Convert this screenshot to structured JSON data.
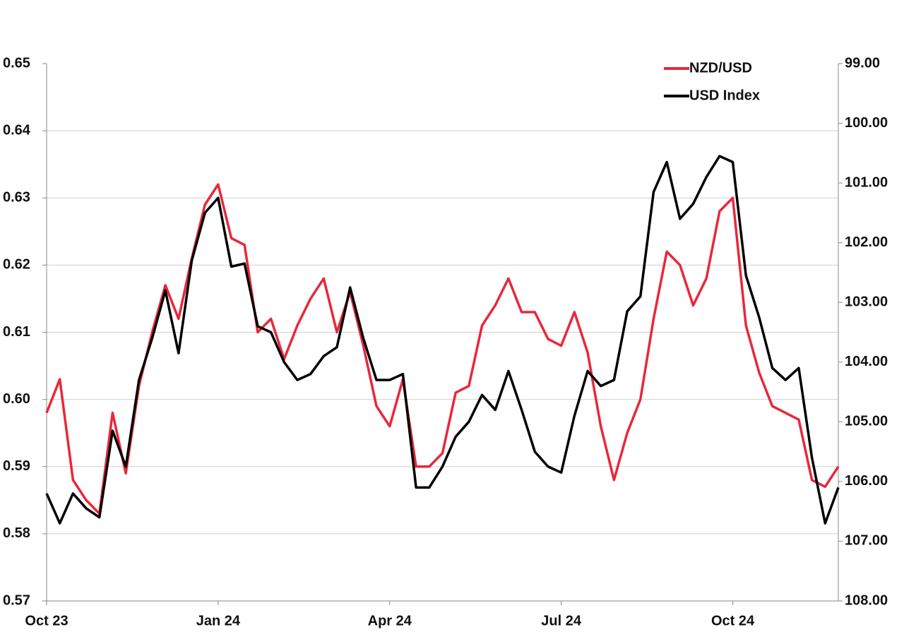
{
  "chart_data": {
    "type": "line",
    "categories": [
      "Oct 23",
      null,
      null,
      null,
      null,
      null,
      null,
      null,
      null,
      null,
      null,
      null,
      null,
      "Jan 24",
      null,
      null,
      null,
      null,
      null,
      null,
      null,
      null,
      null,
      null,
      null,
      null,
      "Apr 24",
      null,
      null,
      null,
      null,
      null,
      null,
      null,
      null,
      null,
      null,
      null,
      null,
      "Jul 24",
      null,
      null,
      null,
      null,
      null,
      null,
      null,
      null,
      null,
      null,
      null,
      null,
      "Oct 24",
      null,
      null,
      null,
      null,
      null,
      null,
      null,
      null
    ],
    "series": [
      {
        "name": "NZD/USD",
        "color": "#e8283a",
        "axis": "y",
        "values": [
          0.598,
          0.603,
          0.588,
          0.585,
          0.583,
          0.598,
          0.589,
          0.602,
          0.61,
          0.617,
          0.612,
          0.621,
          0.629,
          0.632,
          0.624,
          0.623,
          0.61,
          0.612,
          0.606,
          0.611,
          0.615,
          0.618,
          0.61,
          0.616,
          0.608,
          0.599,
          0.596,
          0.603,
          0.59,
          0.59,
          0.592,
          0.601,
          0.602,
          0.611,
          0.614,
          0.618,
          0.613,
          0.613,
          0.609,
          0.608,
          0.613,
          0.607,
          0.596,
          0.588,
          0.595,
          0.6,
          0.612,
          0.622,
          0.62,
          0.614,
          0.618,
          0.628,
          0.63,
          0.611,
          0.604,
          0.599,
          0.598,
          0.597,
          0.588,
          0.587,
          0.59
        ]
      },
      {
        "name": "USD Index",
        "color": "#000000",
        "axis": "y2",
        "values": [
          106.2,
          106.7,
          106.2,
          106.45,
          106.6,
          105.15,
          105.75,
          104.3,
          103.6,
          102.8,
          103.85,
          102.3,
          101.5,
          101.25,
          102.4,
          102.35,
          103.4,
          103.5,
          104.0,
          104.3,
          104.2,
          103.9,
          103.75,
          102.75,
          103.6,
          104.3,
          104.3,
          104.2,
          106.1,
          106.1,
          105.75,
          105.25,
          105.0,
          104.55,
          104.8,
          104.15,
          104.8,
          105.5,
          105.75,
          105.85,
          104.9,
          104.15,
          104.4,
          104.3,
          103.15,
          102.9,
          101.15,
          100.65,
          101.6,
          101.35,
          100.9,
          100.55,
          100.65,
          102.55,
          103.25,
          104.1,
          104.3,
          104.1,
          105.6,
          106.7,
          106.1
        ]
      }
    ],
    "ylim": [
      0.57,
      0.65
    ],
    "yticks": [
      0.57,
      0.58,
      0.59,
      {
        "value": 0.6,
        "label": "0.60"
      },
      0.61,
      0.62,
      0.63,
      0.64,
      0.65
    ],
    "y2lim": [
      108,
      99
    ],
    "y2ticks": [
      {
        "value": 108,
        "label": "108.00"
      },
      {
        "value": 107,
        "label": "107.00"
      },
      {
        "value": 106,
        "label": "106.00"
      },
      {
        "value": 105,
        "label": "105.00"
      },
      {
        "value": 104,
        "label": "104.00"
      },
      {
        "value": 103,
        "label": "103.00"
      },
      {
        "value": 102,
        "label": "102.00"
      },
      {
        "value": 101,
        "label": "101.00"
      },
      {
        "value": 100,
        "label": "100.00"
      },
      {
        "value": 99,
        "label": "99.00"
      }
    ],
    "grid": true,
    "legend": "upper right"
  }
}
